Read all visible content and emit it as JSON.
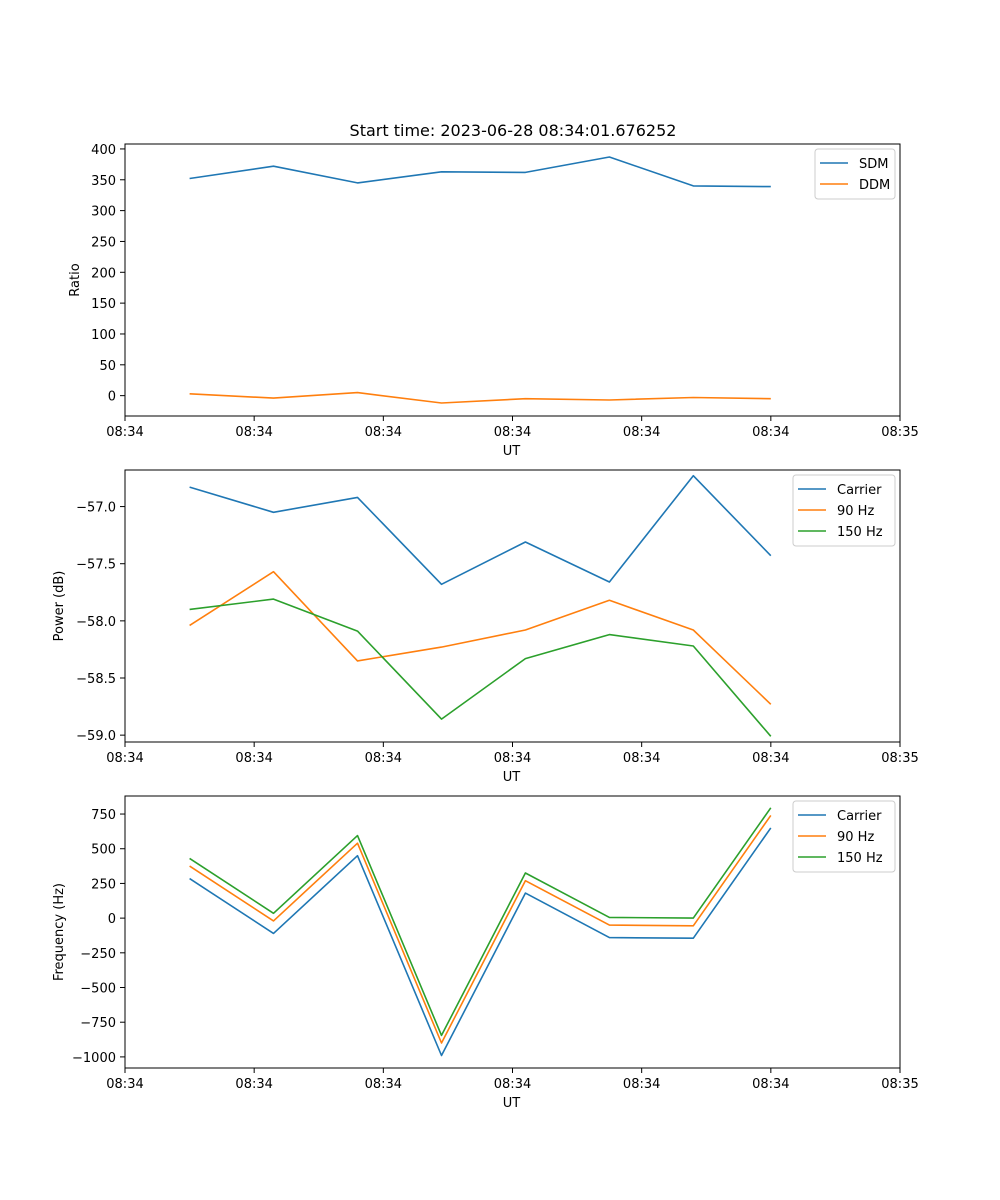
{
  "figure": {
    "title": "Start time: 2023-06-28 08:34:01.676252"
  },
  "chart_data": [
    {
      "type": "line",
      "title": "Start time: 2023-06-28 08:34:01.676252",
      "xlabel": "UT",
      "ylabel": "Ratio",
      "x_tick_labels": [
        "08:34",
        "08:34",
        "08:34",
        "08:34",
        "08:34",
        "08:34",
        "08:35"
      ],
      "xlim": [
        0,
        12
      ],
      "x_ticks": [
        0,
        2,
        4,
        6,
        8,
        10,
        12
      ],
      "x": [
        1,
        2.3,
        3.6,
        4.9,
        6.2,
        7.5,
        8.8,
        10.0
      ],
      "ylim": [
        -33,
        408
      ],
      "y_ticks": [
        0,
        50,
        100,
        150,
        200,
        250,
        300,
        350,
        400
      ],
      "legend_position": "top-right",
      "series": [
        {
          "name": "SDM",
          "color": "#1f77b4",
          "values": [
            352,
            372,
            345,
            363,
            362,
            387,
            340,
            339
          ]
        },
        {
          "name": "DDM",
          "color": "#ff7f0e",
          "values": [
            3,
            -4,
            5,
            -12,
            -5,
            -7,
            -3,
            -5
          ]
        }
      ]
    },
    {
      "type": "line",
      "xlabel": "UT",
      "ylabel": "Power (dB)",
      "x_tick_labels": [
        "08:34",
        "08:34",
        "08:34",
        "08:34",
        "08:34",
        "08:34",
        "08:35"
      ],
      "xlim": [
        0,
        12
      ],
      "x_ticks": [
        0,
        2,
        4,
        6,
        8,
        10,
        12
      ],
      "x": [
        1,
        2.3,
        3.6,
        4.9,
        6.2,
        7.5,
        8.8,
        10.0
      ],
      "ylim": [
        -59.06,
        -56.68
      ],
      "y_ticks": [
        -59.0,
        -58.5,
        -58.0,
        -57.5,
        -57.0
      ],
      "y_tick_labels": [
        "−59.0",
        "−58.5",
        "−58.0",
        "−57.5",
        "−57.0"
      ],
      "legend_position": "top-right",
      "series": [
        {
          "name": "Carrier",
          "color": "#1f77b4",
          "values": [
            -56.83,
            -57.05,
            -56.92,
            -57.68,
            -57.31,
            -57.66,
            -56.73,
            -57.43
          ]
        },
        {
          "name": "90 Hz",
          "color": "#ff7f0e",
          "values": [
            -58.04,
            -57.57,
            -58.35,
            -58.23,
            -58.08,
            -57.82,
            -58.08,
            -58.73
          ]
        },
        {
          "name": "150 Hz",
          "color": "#2ca02c",
          "values": [
            -57.9,
            -57.81,
            -58.09,
            -58.86,
            -58.33,
            -58.12,
            -58.22,
            -59.01
          ]
        }
      ]
    },
    {
      "type": "line",
      "xlabel": "UT",
      "ylabel": "Frequency (Hz)",
      "x_tick_labels": [
        "08:34",
        "08:34",
        "08:34",
        "08:34",
        "08:34",
        "08:34",
        "08:35"
      ],
      "xlim": [
        0,
        12
      ],
      "x_ticks": [
        0,
        2,
        4,
        6,
        8,
        10,
        12
      ],
      "x": [
        1,
        2.3,
        3.6,
        4.9,
        6.2,
        7.5,
        8.8,
        10.0
      ],
      "ylim": [
        -1080,
        880
      ],
      "y_ticks": [
        -1000,
        -750,
        -500,
        -250,
        0,
        250,
        500,
        750
      ],
      "y_tick_labels": [
        "−1000",
        "−750",
        "−500",
        "−250",
        "0",
        "250",
        "500",
        "750"
      ],
      "legend_position": "top-right",
      "series": [
        {
          "name": "Carrier",
          "color": "#1f77b4",
          "values": [
            285,
            -110,
            450,
            -990,
            180,
            -140,
            -145,
            650
          ]
        },
        {
          "name": "90 Hz",
          "color": "#ff7f0e",
          "values": [
            375,
            -20,
            540,
            -900,
            270,
            -50,
            -55,
            740
          ]
        },
        {
          "name": "150 Hz",
          "color": "#2ca02c",
          "values": [
            430,
            35,
            595,
            -845,
            325,
            5,
            0,
            795
          ]
        }
      ]
    }
  ]
}
